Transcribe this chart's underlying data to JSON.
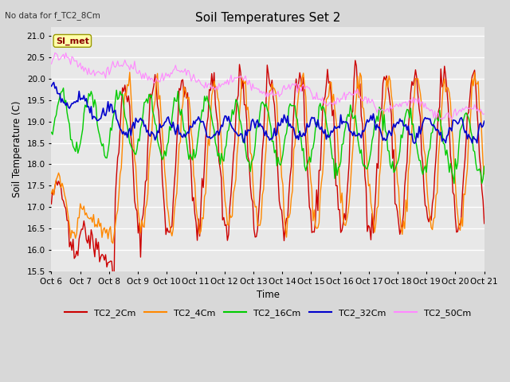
{
  "title": "Soil Temperatures Set 2",
  "no_data_label": "No data for f_TC2_8Cm",
  "site_label": "SI_met",
  "xlabel": "Time",
  "ylabel": "Soil Temperature (C)",
  "ylim": [
    15.5,
    21.2
  ],
  "bg_color": "#d8d8d8",
  "plot_bg": "#e8e8e8",
  "series": {
    "TC2_2Cm": {
      "color": "#cc0000",
      "lw": 1.0
    },
    "TC2_4Cm": {
      "color": "#ff8800",
      "lw": 1.0
    },
    "TC2_16Cm": {
      "color": "#00cc00",
      "lw": 1.0
    },
    "TC2_32Cm": {
      "color": "#0000cc",
      "lw": 1.2
    },
    "TC2_50Cm": {
      "color": "#ff88ff",
      "lw": 0.8
    }
  },
  "xtick_labels": [
    "Oct 6",
    "Oct 7",
    "Oct 8",
    "Oct 9",
    "Oct 10",
    "Oct 11",
    "Oct 12",
    "Oct 13",
    "Oct 14",
    "Oct 15",
    "Oct 16",
    "Oct 17",
    "Oct 18",
    "Oct 19",
    "Oct 20",
    "Oct 21"
  ],
  "ytick_vals": [
    15.5,
    16.0,
    16.5,
    17.0,
    17.5,
    18.0,
    18.5,
    19.0,
    19.5,
    20.0,
    20.5,
    21.0
  ]
}
